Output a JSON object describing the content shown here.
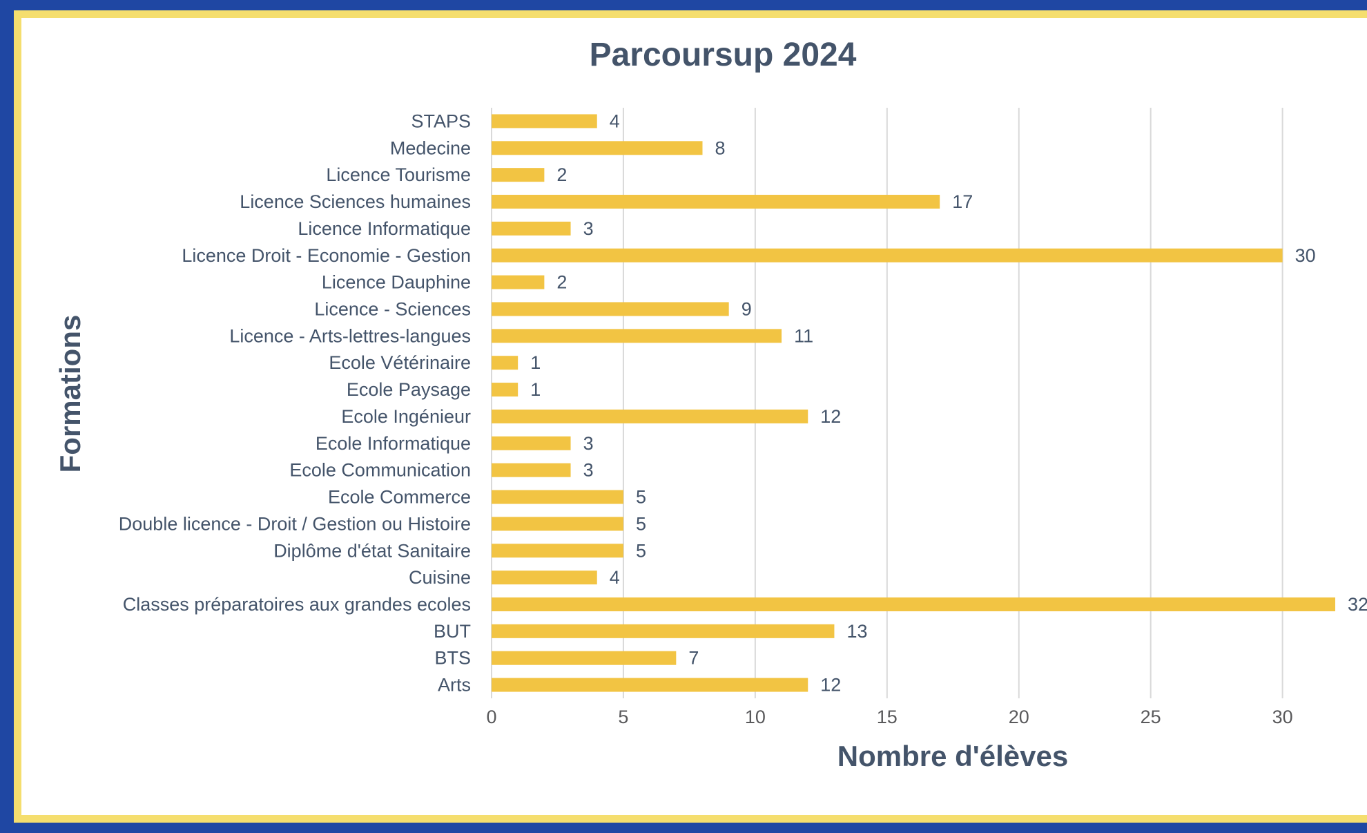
{
  "chart_data": {
    "type": "bar",
    "orientation": "horizontal",
    "title": "Parcoursup 2024",
    "xlabel": "Nombre d'élèves",
    "ylabel": "Formations",
    "xlim": [
      0,
      32
    ],
    "x_ticks": [
      "0",
      "5",
      "10",
      "15",
      "20",
      "25",
      "30"
    ],
    "grid": true,
    "bar_color": "#f2c443",
    "categories": [
      "STAPS",
      "Medecine",
      "Licence Tourisme",
      "Licence Sciences humaines",
      "Licence Informatique",
      "Licence Droit - Economie - Gestion",
      "Licence Dauphine",
      "Licence - Sciences",
      "Licence - Arts-lettres-langues",
      "Ecole Vétérinaire",
      "Ecole Paysage",
      "Ecole Ingénieur",
      "Ecole Informatique",
      "Ecole Communication",
      "Ecole Commerce",
      "Double licence - Droit / Gestion ou Histoire",
      "Diplôme d'état Sanitaire",
      "Cuisine",
      "Classes préparatoires aux grandes ecoles",
      "BUT",
      "BTS",
      "Arts"
    ],
    "values": [
      4,
      8,
      2,
      17,
      3,
      30,
      2,
      9,
      11,
      1,
      1,
      12,
      3,
      3,
      5,
      5,
      5,
      4,
      32,
      13,
      7,
      12
    ]
  },
  "colors": {
    "outer_border": "#1f47a3",
    "inner_border": "#f5de6e",
    "text": "#44546a"
  }
}
